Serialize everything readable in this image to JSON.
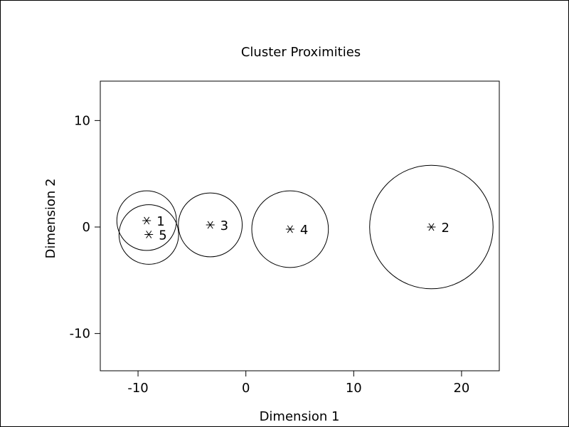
{
  "chart_data": {
    "type": "scatter",
    "title": "Cluster Proximities",
    "xlabel": "Dimension 1",
    "ylabel": "Dimension 2",
    "xlim": [
      -13.5,
      23.5
    ],
    "ylim": [
      -13.5,
      13.7
    ],
    "xticks": [
      -10,
      0,
      10,
      20
    ],
    "yticks": [
      -10,
      0,
      10
    ],
    "xtick_labels": [
      "-10",
      "0",
      "10",
      "20"
    ],
    "ytick_labels": [
      "-10",
      "0",
      "10"
    ],
    "grid": false,
    "legend": false,
    "marker": "*",
    "clusters": [
      {
        "label": "1",
        "x": -9.2,
        "y": 0.6,
        "radius": 2.8
      },
      {
        "label": "5",
        "x": -9.0,
        "y": -0.7,
        "radius": 2.8
      },
      {
        "label": "3",
        "x": -3.3,
        "y": 0.2,
        "radius": 3.0
      },
      {
        "label": "4",
        "x": 4.1,
        "y": -0.2,
        "radius": 3.6
      },
      {
        "label": "2",
        "x": 17.2,
        "y": 0.0,
        "radius": 5.8
      }
    ]
  }
}
